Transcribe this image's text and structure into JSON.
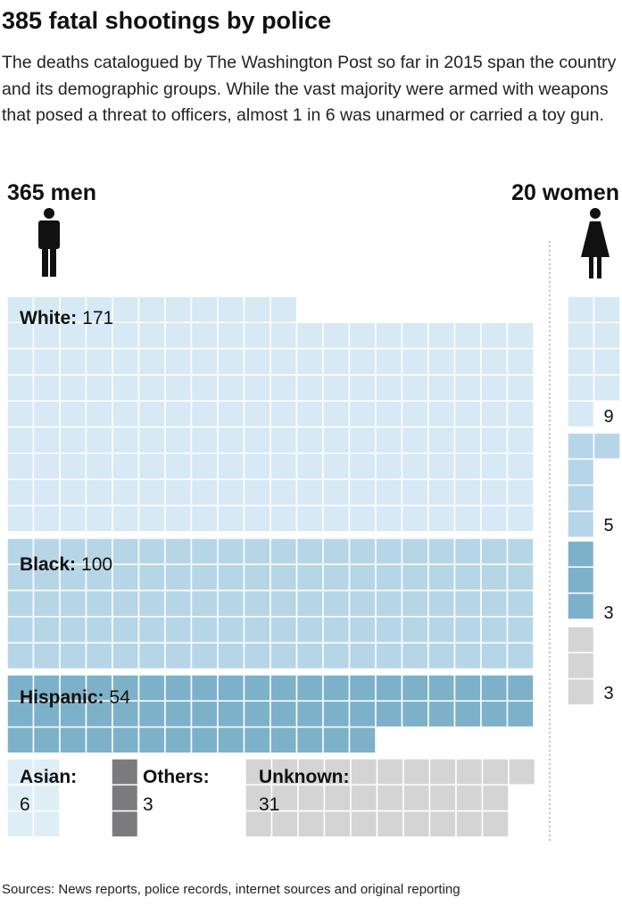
{
  "chart_data": {
    "type": "waffle",
    "title": "385 fatal shootings by police",
    "subtitle": "The deaths catalogued by The Washington Post so far in 2015 span the country and its demographic groups. While the vast majority were armed with weapons that posed a threat to officers, almost 1 in 6 was unarmed or carried a toy gun.",
    "source": "Sources: News reports, police records, internet sources and original reporting",
    "men_label": "365 men",
    "women_label": "20 women",
    "men": {
      "categories": [
        "White:",
        "Black:",
        "Hispanic:",
        "Asian:",
        "Others:",
        "Unknown:"
      ],
      "values": [
        171,
        100,
        54,
        6,
        3,
        31
      ],
      "colors": [
        "#d6e9f4",
        "#b6d6e8",
        "#7db1c9",
        "#deeef6",
        "#7b7b7d",
        "#d4d4d4"
      ]
    },
    "women": {
      "values": [
        9,
        5,
        3,
        3
      ],
      "colors": [
        "#d6e9f4",
        "#b6d6e8",
        "#7db1c9",
        "#d4d4d4"
      ]
    }
  }
}
